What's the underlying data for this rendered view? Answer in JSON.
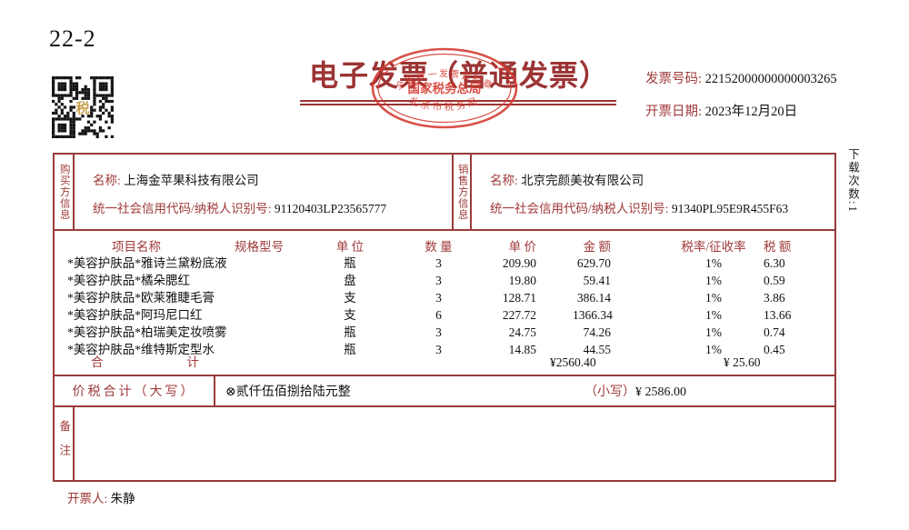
{
  "page_label": "22-2",
  "header": {
    "title": "电子发票（普通发票）",
    "invoice_number_label": "发票号码:",
    "invoice_number": "22152000000000003265",
    "invoice_date_label": "开票日期:",
    "invoice_date": "2023年12月20日",
    "download_count": "下载次数:1"
  },
  "stamp": {
    "arc_top": "全国统一发票监制章",
    "center": "国家税务总局",
    "bottom": "北京市税务局"
  },
  "qr": {
    "center_glyph": "税"
  },
  "buyer": {
    "side_label": "购买方信息",
    "name_label": "名称:",
    "name": "上海金苹果科技有限公司",
    "tax_id_label": "统一社会信用代码/纳税人识别号:",
    "tax_id": "91120403LP23565777"
  },
  "seller": {
    "side_label": "销售方信息",
    "name_label": "名称:",
    "name": "北京完颜美妆有限公司",
    "tax_id_label": "统一社会信用代码/纳税人识别号:",
    "tax_id": "91340PL95E9R455F63"
  },
  "items_table": {
    "headers": [
      "项目名称",
      "规格型号",
      "单 位",
      "数 量",
      "单 价",
      "金 额",
      "税率/征收率",
      "税 额"
    ],
    "rows": [
      {
        "name": "*美容护肤品*雅诗兰黛粉底液",
        "spec": "",
        "unit": "瓶",
        "qty": "3",
        "price": "209.90",
        "amount": "629.70",
        "tax_rate": "1%",
        "tax": "6.30"
      },
      {
        "name": "*美容护肤品*橘朵腮红",
        "spec": "",
        "unit": "盘",
        "qty": "3",
        "price": "19.80",
        "amount": "59.41",
        "tax_rate": "1%",
        "tax": "0.59"
      },
      {
        "name": "*美容护肤品*欧莱雅睫毛膏",
        "spec": "",
        "unit": "支",
        "qty": "3",
        "price": "128.71",
        "amount": "386.14",
        "tax_rate": "1%",
        "tax": "3.86"
      },
      {
        "name": "*美容护肤品*阿玛尼口红",
        "spec": "",
        "unit": "支",
        "qty": "6",
        "price": "227.72",
        "amount": "1366.34",
        "tax_rate": "1%",
        "tax": "13.66"
      },
      {
        "name": "*美容护肤品*柏瑞美定妆喷雾",
        "spec": "",
        "unit": "瓶",
        "qty": "3",
        "price": "24.75",
        "amount": "74.26",
        "tax_rate": "1%",
        "tax": "0.74"
      },
      {
        "name": "*美容护肤品*维特斯定型水",
        "spec": "",
        "unit": "瓶",
        "qty": "3",
        "price": "14.85",
        "amount": "44.55",
        "tax_rate": "1%",
        "tax": "0.45"
      }
    ],
    "total_label": "合计",
    "total_amount": "¥2560.40",
    "total_tax": "¥ 25.60"
  },
  "summary": {
    "label": "价税合计（大写）",
    "amount_words": "⊗贰仟伍佰捌拾陆元整",
    "small_label": "（小写）",
    "amount_figures": "¥ 2586.00"
  },
  "remarks": {
    "side_label": "备注",
    "content": ""
  },
  "footer": {
    "drawer_label": "开票人:",
    "drawer": "朱静"
  },
  "colors": {
    "border_maroon": "#9a3b3b",
    "label_red": "#a03a3a",
    "title_maroon": "#9c3434",
    "stamp_red": "#d4392e",
    "text_black": "#111111",
    "qr_gold": "#c8a050"
  }
}
